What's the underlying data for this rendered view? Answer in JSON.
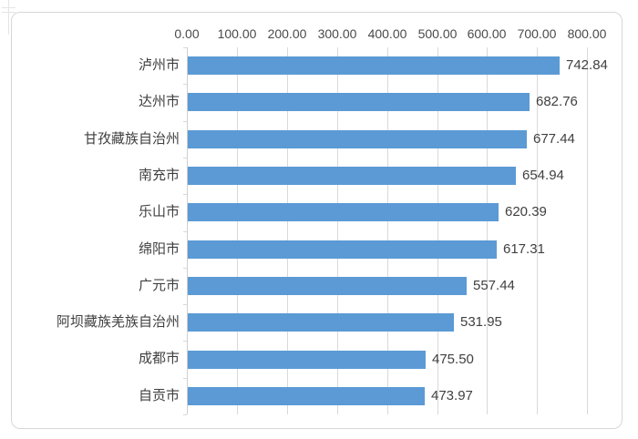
{
  "chart_data": {
    "type": "bar",
    "orientation": "horizontal",
    "title": "",
    "legend": "none",
    "grid": true,
    "categories": [
      "泸州市",
      "达州市",
      "甘孜藏族自治州",
      "南充市",
      "乐山市",
      "绵阳市",
      "广元市",
      "阿坝藏族羌族自治州",
      "成都市",
      "自贡市"
    ],
    "values": [
      742.84,
      682.76,
      677.44,
      654.94,
      620.39,
      617.31,
      557.44,
      531.95,
      475.5,
      473.97
    ],
    "value_labels": [
      "742.84",
      "682.76",
      "677.44",
      "654.94",
      "620.39",
      "617.31",
      "557.44",
      "531.95",
      "475.50",
      "473.97"
    ],
    "x_axis": {
      "position": "top",
      "min": 0,
      "max": 800,
      "tick_step": 100,
      "tick_labels": [
        "0.00",
        "100.00",
        "200.00",
        "300.00",
        "400.00",
        "500.00",
        "600.00",
        "700.00",
        "800.00"
      ]
    },
    "colors": {
      "bar": "#5b9ad5",
      "gridline": "#d9d9d9",
      "axis_text": "#4a4a4a",
      "value_text": "#404040",
      "category_text": "#3f3f3f",
      "frame_border": "#d7d7d7"
    }
  }
}
